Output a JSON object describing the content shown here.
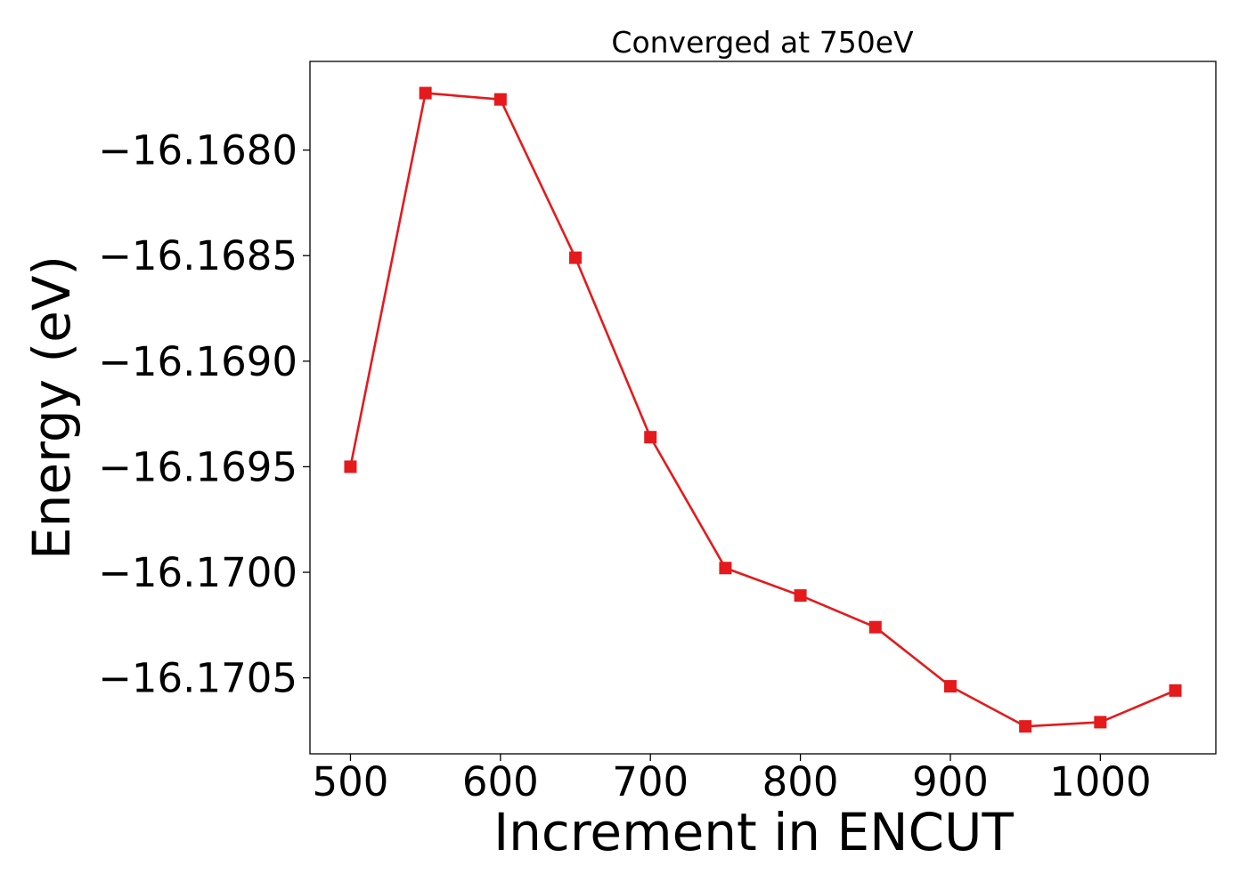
{
  "chart_data": {
    "type": "line",
    "title": "Converged at 750eV",
    "xlabel": "Increment in ENCUT",
    "ylabel": "Energy (eV)",
    "x": [
      500,
      550,
      600,
      650,
      700,
      750,
      800,
      850,
      900,
      950,
      1000,
      1050
    ],
    "series": [
      {
        "values": [
          -16.1695,
          -16.16773,
          -16.16776,
          -16.16851,
          -16.16936,
          -16.16998,
          -16.17011,
          -16.17026,
          -16.17054,
          -16.17073,
          -16.17071,
          -16.17056
        ],
        "color": "#e41a1c",
        "marker": "square"
      }
    ],
    "xlim": [
      473,
      1077
    ],
    "ylim": [
      -16.17086,
      -16.16758
    ],
    "xticks": [
      500,
      600,
      700,
      800,
      900,
      1000
    ],
    "xtick_labels": [
      "500",
      "600",
      "700",
      "800",
      "900",
      "1000"
    ],
    "yticks": [
      -16.168,
      -16.1685,
      -16.169,
      -16.1695,
      -16.17,
      -16.1705
    ],
    "ytick_labels": [
      "−16.1680",
      "−16.1685",
      "−16.1690",
      "−16.1695",
      "−16.1700",
      "−16.1705"
    ],
    "grid": false,
    "legend": "none"
  }
}
